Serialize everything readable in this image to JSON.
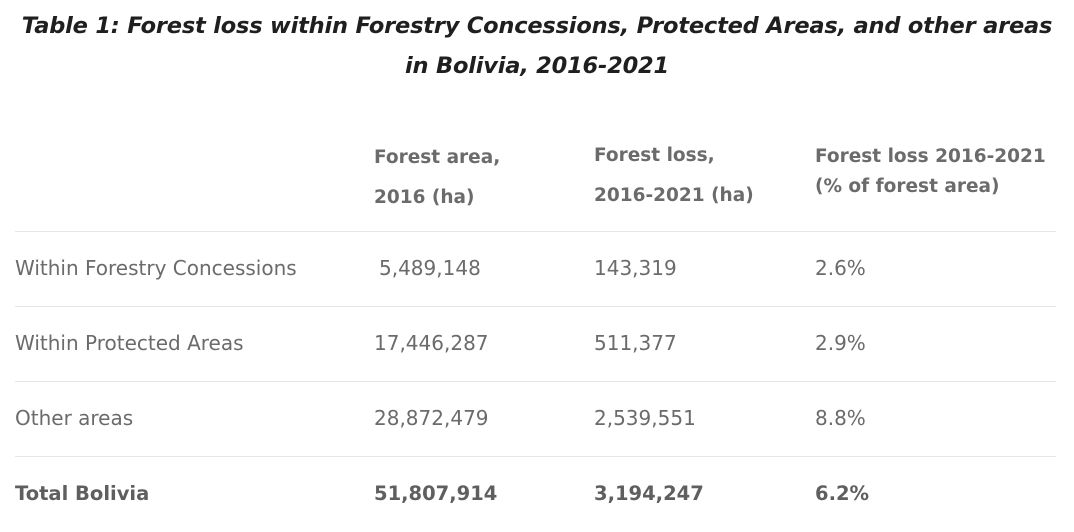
{
  "title": {
    "line1": "Table 1: Forest loss within Forestry Concessions, Protected Areas, and other areas",
    "line2": "in Bolivia, 2016-2021"
  },
  "headers": {
    "col1": {
      "line1": "Forest area,",
      "line2": "2016 (ha)"
    },
    "col2": {
      "line1": "Forest loss,",
      "line2": "2016-2021 (ha)"
    },
    "col3": {
      "line1": "Forest loss 2016-2021",
      "line2": "(% of forest area)"
    }
  },
  "rows": [
    {
      "label": "Within Forestry Concessions",
      "area": "5,489,148",
      "loss": "143,319",
      "pct": "2.6%"
    },
    {
      "label": "Within Protected Areas",
      "area": "17,446,287",
      "loss": "511,377",
      "pct": "2.9%"
    },
    {
      "label": "Other areas",
      "area": "28,872,479",
      "loss": "2,539,551",
      "pct": "8.8%"
    }
  ],
  "total": {
    "label": "Total Bolivia",
    "area": "51,807,914",
    "loss": "3,194,247",
    "pct": "6.2%"
  }
}
